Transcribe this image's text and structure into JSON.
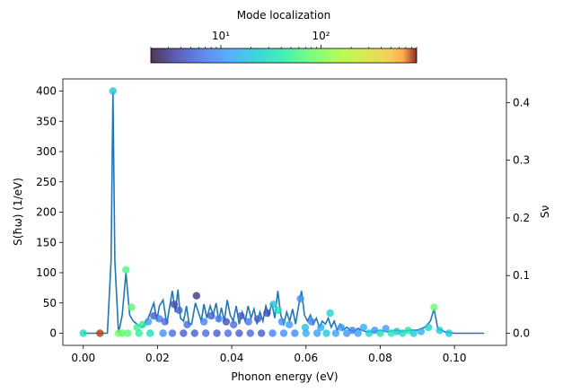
{
  "chart_data": {
    "type": "line",
    "x_axis": {
      "label": "Phonon energy (eV)",
      "lim": [
        -0.0055,
        0.114
      ],
      "ticks": [
        0.0,
        0.02,
        0.04,
        0.06,
        0.08,
        0.1
      ],
      "tick_labels": [
        "0.00",
        "0.02",
        "0.04",
        "0.06",
        "0.08",
        "0.10"
      ]
    },
    "y_left": {
      "label": "S(ħω)  (1/eV)",
      "lim": [
        -20,
        420
      ],
      "ticks": [
        0,
        50,
        100,
        150,
        200,
        250,
        300,
        350,
        400
      ],
      "tick_labels": [
        "0",
        "50",
        "100",
        "150",
        "200",
        "250",
        "300",
        "350",
        "400"
      ]
    },
    "y_right": {
      "label": "Sν",
      "lim": [
        -0.021,
        0.441
      ],
      "ticks": [
        0.0,
        0.1,
        0.2,
        0.3,
        0.4
      ],
      "tick_labels": [
        "0.0",
        "0.1",
        "0.2",
        "0.3",
        "0.4"
      ]
    },
    "colorbar": {
      "title": "Mode localization",
      "scale": "log",
      "range": [
        2,
        900
      ],
      "ticks": [
        10,
        100
      ],
      "tick_labels": [
        "10¹",
        "10²"
      ],
      "colormap": "turbo"
    },
    "line_series": {
      "color": "#1f77b4",
      "x": [
        0.0,
        0.0065,
        0.0075,
        0.008,
        0.0085,
        0.0095,
        0.0105,
        0.0115,
        0.0125,
        0.0135,
        0.0145,
        0.016,
        0.0175,
        0.019,
        0.0198,
        0.0205,
        0.0215,
        0.0225,
        0.0233,
        0.024,
        0.0248,
        0.0255,
        0.0262,
        0.027,
        0.0278,
        0.0285,
        0.0292,
        0.0302,
        0.031,
        0.0318,
        0.0325,
        0.0333,
        0.0342,
        0.035,
        0.0358,
        0.0365,
        0.0372,
        0.038,
        0.0388,
        0.0396,
        0.0404,
        0.0412,
        0.042,
        0.0428,
        0.0436,
        0.0444,
        0.0452,
        0.046,
        0.0468,
        0.0476,
        0.0484,
        0.0492,
        0.05,
        0.0508,
        0.0516,
        0.0524,
        0.0532,
        0.054,
        0.0548,
        0.0556,
        0.0564,
        0.0572,
        0.058,
        0.0588,
        0.0596,
        0.0604,
        0.0612,
        0.062,
        0.0628,
        0.0636,
        0.0644,
        0.0652,
        0.066,
        0.0668,
        0.0676,
        0.0684,
        0.0692,
        0.07,
        0.071,
        0.072,
        0.073,
        0.074,
        0.075,
        0.076,
        0.078,
        0.08,
        0.082,
        0.084,
        0.086,
        0.088,
        0.09,
        0.092,
        0.0935,
        0.0945,
        0.0955,
        0.0975,
        0.1,
        0.108
      ],
      "y": [
        0,
        0,
        120,
        400,
        120,
        0,
        30,
        100,
        30,
        20,
        15,
        10,
        25,
        50,
        20,
        45,
        55,
        15,
        45,
        70,
        35,
        72,
        25,
        20,
        45,
        15,
        15,
        50,
        35,
        20,
        48,
        25,
        45,
        30,
        50,
        20,
        42,
        20,
        55,
        30,
        20,
        45,
        15,
        35,
        20,
        45,
        25,
        40,
        15,
        35,
        20,
        45,
        30,
        50,
        25,
        70,
        30,
        15,
        35,
        20,
        40,
        15,
        45,
        70,
        30,
        20,
        30,
        15,
        25,
        10,
        20,
        15,
        25,
        10,
        20,
        5,
        15,
        5,
        10,
        5,
        3,
        8,
        5,
        3,
        2,
        5,
        2,
        5,
        3,
        5,
        5,
        10,
        20,
        40,
        8,
        2,
        0,
        0
      ]
    },
    "scatter_series": {
      "x": [
        0.0,
        0.0045,
        0.008,
        0.0115,
        0.013,
        0.0145,
        0.016,
        0.0175,
        0.019,
        0.0205,
        0.022,
        0.0245,
        0.0258,
        0.028,
        0.0305,
        0.0325,
        0.0345,
        0.0365,
        0.0385,
        0.0405,
        0.0425,
        0.0445,
        0.047,
        0.0495,
        0.0512,
        0.0525,
        0.0535,
        0.0555,
        0.0585,
        0.0598,
        0.0615,
        0.064,
        0.0665,
        0.0695,
        0.0725,
        0.0755,
        0.0785,
        0.0815,
        0.0845,
        0.0875,
        0.091,
        0.093,
        0.0945,
        0.096,
        0.0985,
        0.0095,
        0.0105,
        0.012,
        0.015,
        0.018,
        0.0215,
        0.024,
        0.027,
        0.03,
        0.033,
        0.036,
        0.039,
        0.042,
        0.045,
        0.048,
        0.051,
        0.054,
        0.057,
        0.06,
        0.063,
        0.0655,
        0.068,
        0.071,
        0.074,
        0.077,
        0.08,
        0.083,
        0.086,
        0.089
      ],
      "y": [
        0.0,
        0.0,
        0.42,
        0.11,
        0.045,
        0.01,
        0.015,
        0.02,
        0.03,
        0.025,
        0.02,
        0.05,
        0.04,
        0.015,
        0.065,
        0.02,
        0.03,
        0.025,
        0.02,
        0.015,
        0.03,
        0.02,
        0.025,
        0.035,
        0.05,
        0.04,
        0.02,
        0.015,
        0.06,
        0.01,
        0.02,
        0.01,
        0.035,
        0.01,
        0.005,
        0.01,
        0.005,
        0.008,
        0.003,
        0.005,
        0.003,
        0.01,
        0.045,
        0.005,
        0.0,
        0.0,
        0.0,
        0.0,
        0.0,
        0.0,
        0.0,
        0.0,
        0.0,
        0.0,
        0.0,
        0.0,
        0.0,
        0.0,
        0.0,
        0.0,
        0.0,
        0.0,
        0.0,
        0.0,
        0.0,
        0.0,
        0.0,
        0.0,
        0.0,
        0.0,
        0.0,
        0.0,
        0.0,
        0.0
      ],
      "localization": [
        30,
        800,
        20,
        60,
        70,
        50,
        45,
        12,
        5,
        8,
        6,
        4,
        5,
        6,
        3,
        8,
        5,
        7,
        4,
        6,
        5,
        7,
        5,
        4,
        20,
        30,
        10,
        12,
        10,
        20,
        8,
        15,
        25,
        12,
        8,
        15,
        10,
        12,
        20,
        40,
        15,
        25,
        80,
        20,
        20,
        90,
        80,
        70,
        45,
        30,
        10,
        6,
        5,
        5,
        6,
        5,
        6,
        5,
        6,
        5,
        8,
        10,
        9,
        15,
        12,
        20,
        12,
        10,
        12,
        25,
        30,
        40,
        30,
        20
      ]
    }
  }
}
